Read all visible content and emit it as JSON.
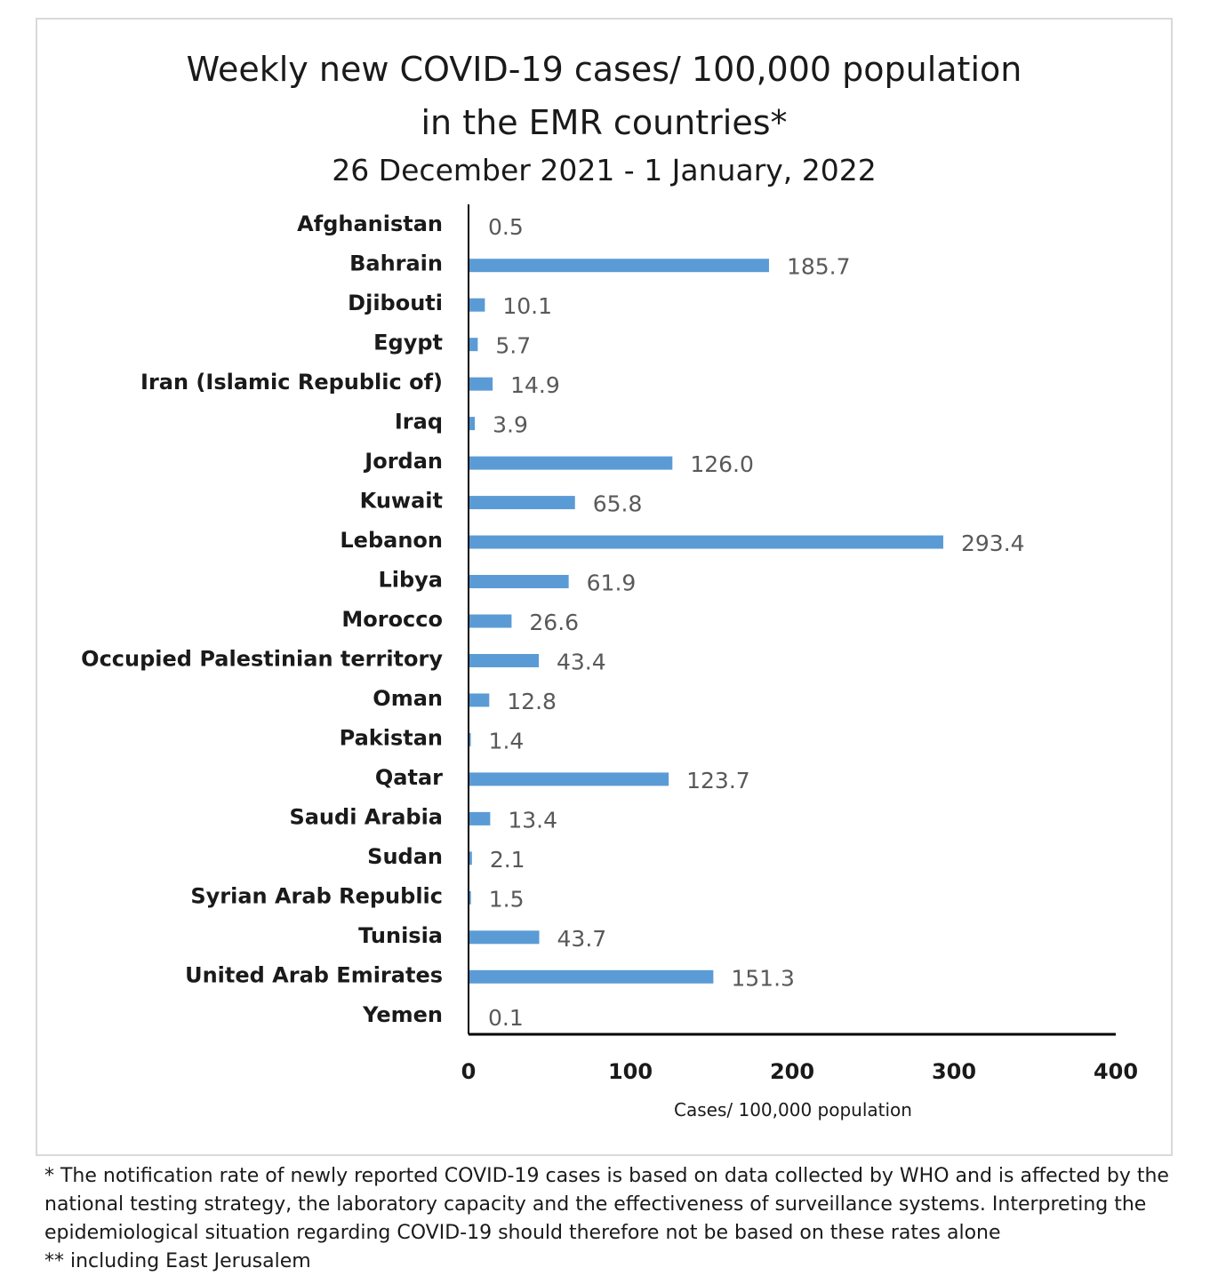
{
  "chart_data": {
    "type": "bar",
    "orientation": "horizontal",
    "title": "Weekly new COVID-19 cases/ 100,000 population",
    "title_line2": "in the EMR countries*",
    "subtitle": "26 December 2021 - 1 January, 2022",
    "xlabel": "Cases/ 100,000 population",
    "ylabel": "",
    "xlim": [
      0,
      400
    ],
    "xticks": [
      "0",
      "100",
      "200",
      "300",
      "400"
    ],
    "xtick_values": [
      0,
      100,
      200,
      300,
      400
    ],
    "bar_color": "#5b9bd5",
    "categories": [
      "Afghanistan",
      "Bahrain",
      "Djibouti",
      "Egypt",
      "Iran (Islamic Republic of)",
      "Iraq",
      "Jordan",
      "Kuwait",
      "Lebanon",
      "Libya",
      "Morocco",
      "Occupied Palestinian territory",
      "Oman",
      "Pakistan",
      "Qatar",
      "Saudi Arabia",
      "Sudan",
      "Syrian Arab Republic",
      "Tunisia",
      "United Arab Emirates",
      "Yemen"
    ],
    "values": [
      0.5,
      185.7,
      10.1,
      5.7,
      14.9,
      3.9,
      126.0,
      65.8,
      293.4,
      61.9,
      26.6,
      43.4,
      12.8,
      1.4,
      123.7,
      13.4,
      2.1,
      1.5,
      43.7,
      151.3,
      0.1
    ],
    "value_labels": [
      "0.5",
      "185.7",
      "10.1",
      "5.7",
      "14.9",
      "3.9",
      "126.0",
      "65.8",
      "293.4",
      "61.9",
      "26.6",
      "43.4",
      "12.8",
      "1.4",
      "123.7",
      "13.4",
      "2.1",
      "1.5",
      "43.7",
      "151.3",
      "0.1"
    ]
  },
  "footnotes": {
    "note1": "* The notification rate of newly reported COVID-19 cases is based on data collected by WHO and is affected by the national testing strategy, the laboratory capacity and the effectiveness of surveillance systems. Interpreting the epidemiological situation regarding COVID-19 should therefore not be based on these rates alone",
    "note2": "** including East Jerusalem"
  }
}
